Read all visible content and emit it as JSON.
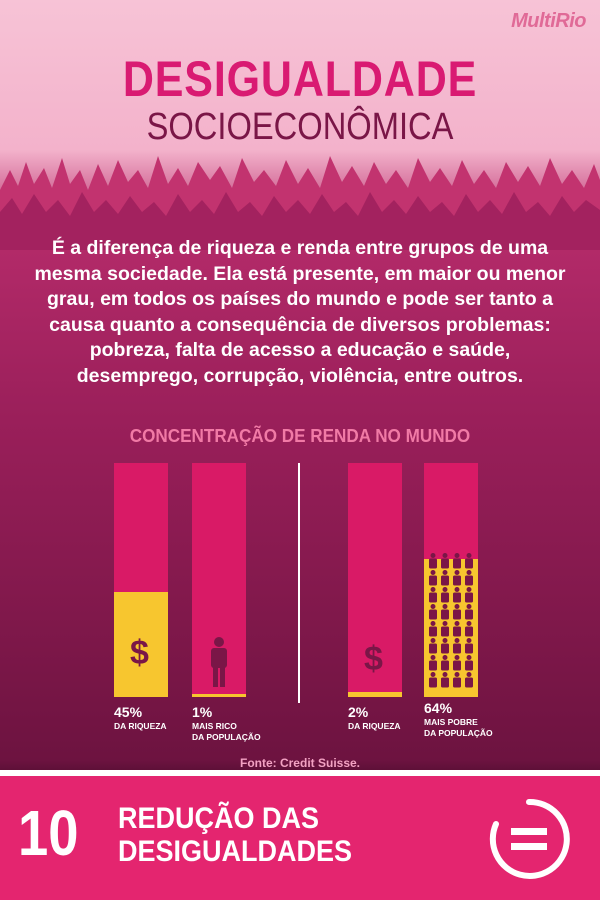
{
  "header": {
    "logo": "MultiRio",
    "title_line1": "DESIGUALDADE",
    "title_line2": "SOCIOECONÔMICA"
  },
  "intro": {
    "text": "É a diferença de riqueza e renda entre grupos de uma mesma sociedade. Ela está presente, em maior ou menor grau, em todos os países do mundo e pode ser tanto a causa quanto a consequência de diversos problemas: pobreza, falta de acesso a educação e saúde, desemprego, corrupção, violência, entre outros."
  },
  "chart_data": {
    "type": "bar",
    "title": "CONCENTRAÇÃO DE RENDA NO MUNDO",
    "groups": [
      {
        "bars": [
          {
            "value": 45,
            "label": "45%",
            "caption": "DA RIQUEZA",
            "icon": "dollar-icon"
          },
          {
            "value": 1,
            "label": "1%",
            "caption_line1": "MAIS RICO",
            "caption_line2": "DA POPULAÇÃO",
            "icon": "person-icon"
          }
        ]
      },
      {
        "bars": [
          {
            "value": 2,
            "label": "2%",
            "caption": "DA RIQUEZA",
            "icon": "dollar-icon"
          },
          {
            "value": 64,
            "label": "64%",
            "caption_line1": "MAIS POBRE",
            "caption_line2": "DA POPULAÇÃO",
            "icon": "people-grid-icon"
          }
        ]
      }
    ],
    "ylim": [
      0,
      100
    ],
    "colors": {
      "bar": "#d91a66",
      "fill": "#f7c62f",
      "icon": "#7a1647"
    }
  },
  "source": "Fonte:  Credit Suisse.",
  "footer": {
    "number": "10",
    "goal_line1": "REDUÇÃO DAS",
    "goal_line2": "DESIGUALDADES",
    "icon": "equals-circle-icon"
  }
}
